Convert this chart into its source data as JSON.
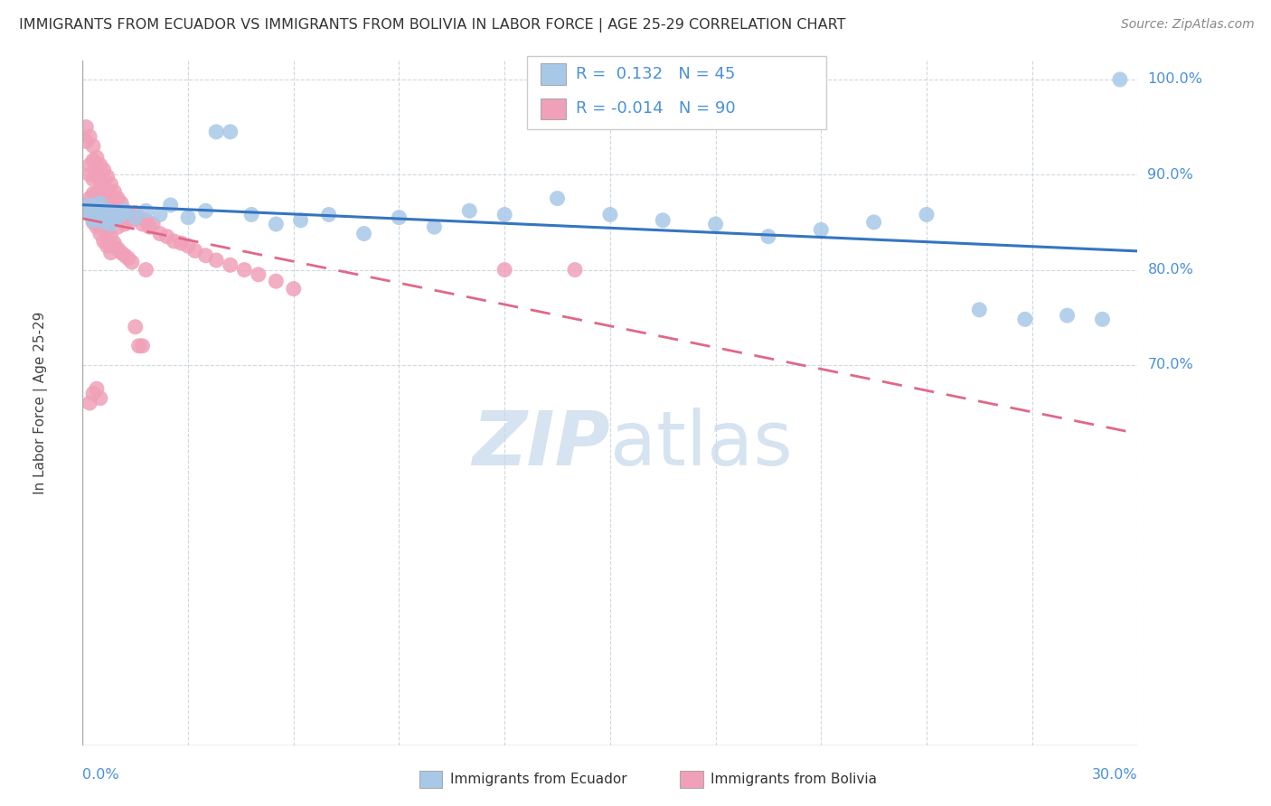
{
  "title": "IMMIGRANTS FROM ECUADOR VS IMMIGRANTS FROM BOLIVIA IN LABOR FORCE | AGE 25-29 CORRELATION CHART",
  "source": "Source: ZipAtlas.com",
  "ylabel_label": "In Labor Force | Age 25-29",
  "xmin": 0.0,
  "xmax": 0.3,
  "ymin": 0.3,
  "ymax": 1.02,
  "ecuador_R": 0.132,
  "ecuador_N": 45,
  "bolivia_R": -0.014,
  "bolivia_N": 90,
  "ecuador_color": "#a8c8e8",
  "bolivia_color": "#f0a0b8",
  "ecuador_line_color": "#3575c0",
  "bolivia_line_color": "#e06888",
  "background_color": "#ffffff",
  "watermark_color": "#c5d8ec",
  "ytick_positions": [
    1.0,
    0.9,
    0.8,
    0.7
  ],
  "ytick_labels": [
    "100.0%",
    "90.0%",
    "80.0%",
    "70.0%"
  ],
  "xtick_left_label": "0.0%",
  "xtick_right_label": "30.0%",
  "ecuador_x": [
    0.001,
    0.002,
    0.002,
    0.003,
    0.004,
    0.005,
    0.006,
    0.007,
    0.008,
    0.01,
    0.012,
    0.015,
    0.018,
    0.022,
    0.025,
    0.03,
    0.035,
    0.038,
    0.042,
    0.048,
    0.055,
    0.062,
    0.07,
    0.08,
    0.09,
    0.1,
    0.11,
    0.12,
    0.135,
    0.15,
    0.165,
    0.18,
    0.195,
    0.21,
    0.225,
    0.24,
    0.255,
    0.268,
    0.28,
    0.29,
    0.003,
    0.006,
    0.009,
    0.012,
    0.295
  ],
  "ecuador_y": [
    0.862,
    0.858,
    0.868,
    0.852,
    0.865,
    0.87,
    0.858,
    0.862,
    0.848,
    0.855,
    0.86,
    0.855,
    0.862,
    0.858,
    0.868,
    0.855,
    0.862,
    0.945,
    0.945,
    0.858,
    0.848,
    0.852,
    0.858,
    0.838,
    0.855,
    0.845,
    0.862,
    0.858,
    0.875,
    0.858,
    0.852,
    0.848,
    0.835,
    0.842,
    0.85,
    0.858,
    0.758,
    0.748,
    0.752,
    0.748,
    0.855,
    0.85,
    0.86,
    0.862,
    1.0
  ],
  "bolivia_x": [
    0.001,
    0.001,
    0.002,
    0.002,
    0.002,
    0.002,
    0.003,
    0.003,
    0.003,
    0.003,
    0.003,
    0.004,
    0.004,
    0.004,
    0.004,
    0.005,
    0.005,
    0.005,
    0.005,
    0.006,
    0.006,
    0.006,
    0.006,
    0.007,
    0.007,
    0.007,
    0.007,
    0.008,
    0.008,
    0.008,
    0.009,
    0.009,
    0.01,
    0.01,
    0.01,
    0.011,
    0.011,
    0.012,
    0.012,
    0.013,
    0.014,
    0.015,
    0.016,
    0.017,
    0.018,
    0.019,
    0.02,
    0.022,
    0.024,
    0.026,
    0.028,
    0.03,
    0.032,
    0.035,
    0.038,
    0.042,
    0.046,
    0.05,
    0.055,
    0.06,
    0.001,
    0.002,
    0.003,
    0.003,
    0.004,
    0.004,
    0.005,
    0.005,
    0.006,
    0.006,
    0.007,
    0.007,
    0.008,
    0.008,
    0.009,
    0.01,
    0.011,
    0.012,
    0.013,
    0.014,
    0.002,
    0.003,
    0.004,
    0.005,
    0.12,
    0.015,
    0.016,
    0.017,
    0.018,
    0.14
  ],
  "bolivia_y": [
    0.95,
    0.935,
    0.94,
    0.91,
    0.9,
    0.875,
    0.93,
    0.915,
    0.895,
    0.88,
    0.858,
    0.918,
    0.9,
    0.88,
    0.862,
    0.91,
    0.893,
    0.875,
    0.86,
    0.905,
    0.888,
    0.868,
    0.852,
    0.898,
    0.882,
    0.862,
    0.848,
    0.89,
    0.872,
    0.858,
    0.882,
    0.865,
    0.875,
    0.858,
    0.845,
    0.87,
    0.855,
    0.862,
    0.848,
    0.858,
    0.852,
    0.86,
    0.855,
    0.848,
    0.852,
    0.845,
    0.848,
    0.838,
    0.835,
    0.83,
    0.828,
    0.825,
    0.82,
    0.815,
    0.81,
    0.805,
    0.8,
    0.795,
    0.788,
    0.78,
    0.868,
    0.86,
    0.87,
    0.85,
    0.862,
    0.845,
    0.855,
    0.838,
    0.848,
    0.83,
    0.842,
    0.825,
    0.835,
    0.818,
    0.828,
    0.822,
    0.818,
    0.815,
    0.812,
    0.808,
    0.66,
    0.67,
    0.675,
    0.665,
    0.8,
    0.74,
    0.72,
    0.72,
    0.8,
    0.8
  ]
}
